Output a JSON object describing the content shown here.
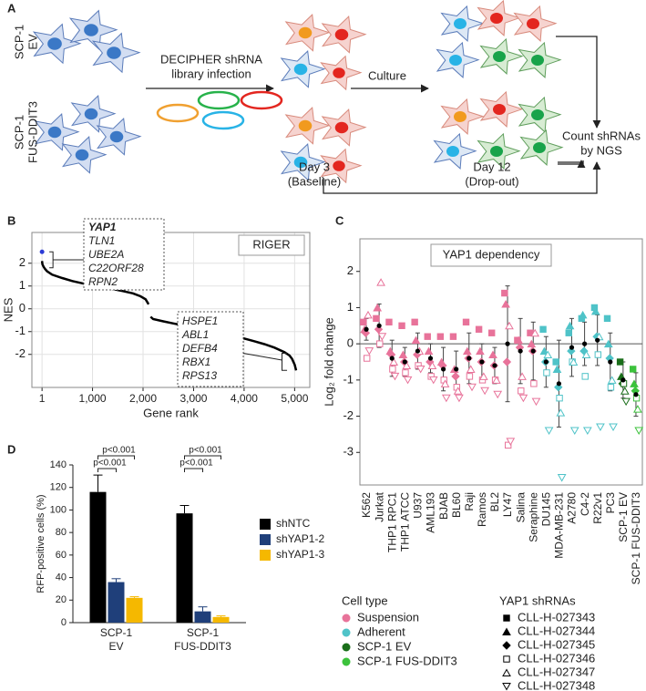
{
  "panel_a": {
    "label": "A",
    "rows": [
      [
        "SCP-1",
        "EV"
      ],
      [
        "SCP-1",
        "FUS-DDIT3"
      ]
    ],
    "infection": [
      "DECIPHER shRNA",
      "library infection"
    ],
    "culture": "Culture",
    "count": [
      "Count shRNAs",
      "by NGS"
    ],
    "day3": [
      "Day 3",
      "(Baseline)"
    ],
    "day12": [
      "Day 12",
      "(Drop-out)"
    ]
  },
  "chart_data": [
    {
      "type": "line",
      "panel": "B",
      "title": "RIGER",
      "x": [
        1,
        10,
        30,
        60,
        100,
        200,
        400,
        600,
        800,
        1000,
        1200,
        1400,
        1600,
        1800,
        1950,
        2050,
        2110,
        2115,
        2150,
        2200,
        2400,
        2600,
        2800,
        3000,
        3200,
        3400,
        3600,
        3800,
        4000,
        4200,
        4400,
        4600,
        4800,
        4900,
        4950,
        5000,
        5030
      ],
      "values": [
        2.1,
        1.95,
        1.85,
        1.75,
        1.65,
        1.5,
        1.35,
        1.22,
        1.12,
        1.03,
        0.95,
        0.87,
        0.78,
        0.68,
        0.55,
        0.42,
        0.2,
        null,
        -0.35,
        -0.45,
        -0.55,
        -0.64,
        -0.73,
        -0.82,
        -0.91,
        -1.0,
        -1.1,
        -1.2,
        -1.3,
        -1.42,
        -1.55,
        -1.7,
        -1.9,
        -2.05,
        -2.2,
        -2.45,
        -2.7
      ],
      "color": "#000000",
      "highlight": {
        "x": 1,
        "y": 2.5,
        "color": "#2b3bd6"
      },
      "xlim": [
        -200,
        5300
      ],
      "ylim": [
        -3.45,
        3.35
      ],
      "xticks": [
        1,
        {
          "value": 1000,
          "label": "1,000"
        },
        {
          "value": 2000,
          "label": "2,000"
        },
        {
          "value": 3000,
          "label": "3,000"
        },
        {
          "value": 4000,
          "label": "4,000"
        },
        {
          "value": 5000,
          "label": "5,000"
        }
      ],
      "yticks": [
        -2,
        -1,
        0,
        1,
        2
      ],
      "grid": true,
      "xlabel": "Gene rank",
      "ylabel": "NES",
      "top_genes": [
        "YAP1",
        "TLN1",
        "UBE2A",
        "C22ORF28",
        "RPN2"
      ],
      "top_gene_color": "#c0282d",
      "bottom_genes": [
        "HSPE1",
        "ABL1",
        "DEFB4",
        "RBX1",
        "RPS13"
      ]
    },
    {
      "type": "dot",
      "panel": "C",
      "title": "YAP1 dependency",
      "ylabel": "Log₂ fold change",
      "categories": [
        "K562",
        "Jurkat",
        "THP1 RPC1",
        "THP1 ATCC",
        "U937",
        "AML193",
        "BJAB",
        "BL60",
        "Raji",
        "Ramos",
        "BL2",
        "LY47",
        "Salina",
        "Seraphine",
        "DU145",
        "MDA-MB-231",
        "A2780",
        "C4-2",
        "R22v1",
        "PC3",
        "SCP-1 EV",
        "SCP-1 FUS-DDIT3"
      ],
      "category_type": [
        0,
        0,
        0,
        0,
        0,
        0,
        0,
        0,
        0,
        0,
        0,
        0,
        0,
        0,
        1,
        1,
        1,
        1,
        1,
        1,
        2,
        3
      ],
      "highlight_categories": [
        21
      ],
      "highlight_color": "#c0282d",
      "means": [
        0.4,
        0.5,
        -0.4,
        -0.5,
        -0.2,
        -0.4,
        -0.7,
        -0.7,
        -0.4,
        -0.5,
        -0.6,
        0.0,
        -0.2,
        -0.2,
        -0.5,
        -1.1,
        -0.1,
        0.0,
        0.1,
        -0.5,
        -1.0,
        -1.4
      ],
      "errors": [
        0.3,
        0.6,
        0.5,
        0.4,
        0.5,
        0.4,
        0.6,
        0.5,
        0.7,
        0.5,
        0.5,
        1.6,
        0.9,
        0.8,
        0.7,
        1.2,
        0.8,
        0.6,
        0.7,
        0.8,
        0.5,
        0.6
      ],
      "series": [
        {
          "name": "CLL-H-027343",
          "marker": "square",
          "values": [
            0.6,
            0.7,
            0.6,
            0.5,
            0.6,
            0.2,
            0.2,
            0.2,
            0.6,
            0.4,
            0.3,
            1.4,
            0.1,
            0.3,
            0.4,
            -0.5,
            0.3,
            0.7,
            1.0,
            0.7,
            -0.5,
            -0.7
          ]
        },
        {
          "name": "CLL-H-027344",
          "marker": "triangle",
          "values": [
            0.4,
            1.0,
            -0.2,
            -0.3,
            0.1,
            -0.2,
            -0.5,
            -0.7,
            -0.2,
            -0.2,
            -0.3,
            1.1,
            0.1,
            0.0,
            -0.2,
            -0.7,
            0.5,
            0.8,
            0.9,
            0.0,
            -0.9,
            -1.1
          ]
        },
        {
          "name": "CLL-H-027345",
          "marker": "diamond",
          "values": [
            0.3,
            0.4,
            -0.3,
            -0.5,
            -0.3,
            -0.5,
            -0.6,
            -0.9,
            -0.4,
            -0.5,
            -0.6,
            -0.5,
            -0.1,
            -0.2,
            -0.5,
            -1.2,
            -0.2,
            -0.2,
            0.2,
            -0.4,
            -1.1,
            -1.3
          ]
        },
        {
          "name": "CLL-H-027346",
          "marker": "square-open",
          "values": [
            -0.4,
            0.0,
            -0.7,
            -0.8,
            -0.6,
            -0.9,
            -1.0,
            -1.2,
            -0.9,
            -1.0,
            -1.0,
            -2.8,
            -1.3,
            -1.1,
            -0.8,
            -1.5,
            -0.5,
            -0.9,
            -0.3,
            -1.2,
            -1.1,
            -1.5
          ]
        },
        {
          "name": "CLL-H-027347",
          "marker": "triangle-open",
          "values": [
            0.8,
            1.7,
            -0.5,
            -0.6,
            -0.2,
            -0.6,
            -1.1,
            -1.3,
            -0.7,
            -0.9,
            -1.0,
            0.5,
            -0.9,
            0.3,
            -0.3,
            -1.9,
            -0.5,
            -0.3,
            0.2,
            -1.0,
            -1.3,
            -1.8
          ]
        },
        {
          "name": "CLL-H-027348",
          "marker": "triangle-down-open",
          "values": [
            -0.2,
            0.2,
            -0.9,
            -1.0,
            -0.7,
            -1.0,
            -1.5,
            -1.5,
            -1.2,
            -1.3,
            -1.4,
            -2.7,
            -1.5,
            -1.6,
            -2.4,
            -3.7,
            -2.4,
            -2.4,
            -2.3,
            -2.3,
            -1.6,
            -2.4
          ]
        }
      ],
      "ylim": [
        -3.9,
        2.9
      ],
      "yticks": [
        -3,
        -2,
        -1,
        0,
        1,
        2
      ],
      "cell_type_title": "Cell type",
      "cell_types": [
        {
          "name": "Suspension",
          "color": "#e8739a"
        },
        {
          "name": "Adherent",
          "color": "#4fc3c8"
        },
        {
          "name": "SCP-1 EV",
          "color": "#1a6e1a"
        },
        {
          "name": "SCP-1 FUS-DDIT3",
          "color": "#3cc23c"
        }
      ],
      "legend_title": "YAP1 shRNAs"
    },
    {
      "type": "bar",
      "panel": "D",
      "ylabel": "RFP-positive cells (%)",
      "categories": [
        "SCP-1\nEV",
        "SCP-1\nFUS-DDIT3"
      ],
      "series": [
        {
          "name": "shNTC",
          "color": "#000000",
          "values": [
            116,
            97
          ],
          "errors": [
            15,
            7
          ]
        },
        {
          "name": "shYAP1-2",
          "color": "#1f3f7a",
          "values": [
            36,
            10
          ],
          "errors": [
            3,
            4
          ]
        },
        {
          "name": "shYAP1-3",
          "color": "#f5b800",
          "values": [
            22,
            5
          ],
          "errors": [
            1,
            1
          ]
        }
      ],
      "ylim": [
        0,
        140
      ],
      "yticks": [
        0,
        20,
        40,
        60,
        80,
        100,
        120,
        140
      ],
      "annotations": [
        "p<0.001",
        "p<0.001",
        "p<0.001",
        "p<0.001"
      ]
    }
  ]
}
